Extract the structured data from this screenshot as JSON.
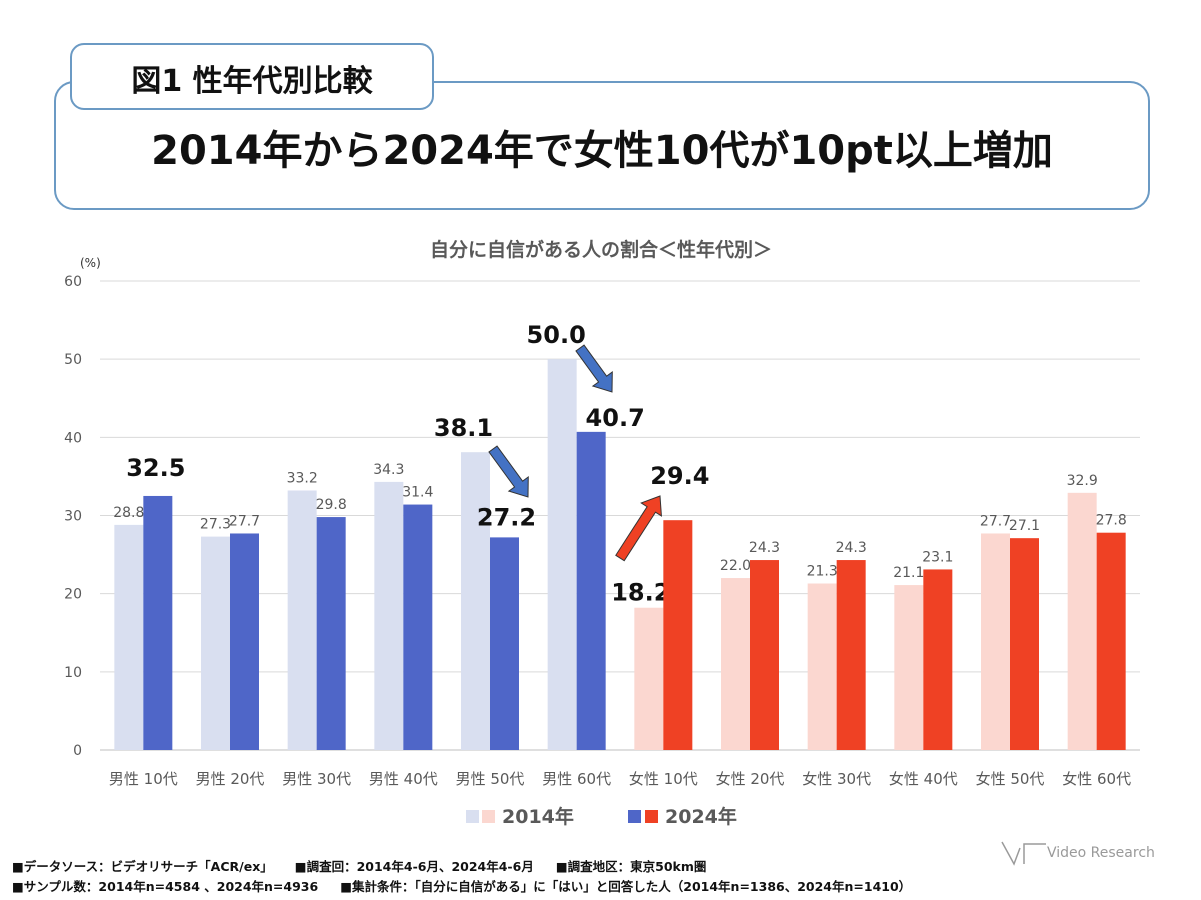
{
  "header": {
    "figure_label": "図1 性年代別比較",
    "headline": "2014年から2024年で女性10代が10pt以上増加"
  },
  "chart_data": {
    "type": "bar",
    "title": "自分に自信がある人の割合＜性年代別＞",
    "ylabel": "(%)",
    "ylim": [
      0,
      60
    ],
    "yticks": [
      0,
      10,
      20,
      30,
      40,
      50,
      60
    ],
    "categories": [
      "男性 10代",
      "男性 20代",
      "男性 30代",
      "男性 40代",
      "男性 50代",
      "男性 60代",
      "女性 10代",
      "女性 20代",
      "女性 30代",
      "女性 40代",
      "女性 50代",
      "女性 60代"
    ],
    "series": [
      {
        "name": "2014年",
        "values": [
          28.8,
          27.3,
          33.2,
          34.3,
          38.1,
          50.0,
          18.2,
          22.0,
          21.3,
          21.1,
          27.7,
          32.9
        ]
      },
      {
        "name": "2024年",
        "values": [
          32.5,
          27.7,
          29.8,
          31.4,
          27.2,
          40.7,
          29.4,
          24.3,
          24.3,
          23.1,
          27.1,
          27.8
        ]
      }
    ],
    "colors": {
      "male_2014": "#d9dff0",
      "male_2024": "#4f66c8",
      "female_2014": "#fbd7d0",
      "female_2024": "#ef4124",
      "grid": "#d9d9d9",
      "label": "#595959",
      "arrow_blue": "#4472c4",
      "arrow_red": "#ef4124"
    },
    "highlight_labels": [
      {
        "category": 0,
        "series": 1
      },
      {
        "category": 4,
        "series": 0
      },
      {
        "category": 4,
        "series": 1
      },
      {
        "category": 5,
        "series": 0
      },
      {
        "category": 5,
        "series": 1
      },
      {
        "category": 6,
        "series": 0
      },
      {
        "category": 6,
        "series": 1
      }
    ],
    "arrows": [
      {
        "from": "男性 50代 2014年",
        "to": "男性 50代 2024年",
        "color": "blue"
      },
      {
        "from": "男性 60代 2014年",
        "to": "男性 60代 2024年",
        "color": "blue"
      },
      {
        "from": "女性 10代 2014年",
        "to": "女性 10代 2024年",
        "color": "red"
      }
    ],
    "legend": [
      "2014年",
      "2024年"
    ],
    "legend_position": "bottom"
  },
  "footer": {
    "line1": [
      "■データソース：ビデオリサーチ「ACR/ex」",
      "■調査回：2014年4-6月、2024年4-6月",
      "■調査地区：東京50km圏"
    ],
    "line2": [
      "■サンプル数：2014年n=4584 、2024年n=4936",
      "■集計条件：「自分に自信がある」に「はい」と回答した人（2014年n=1386、2024年n=1410）"
    ]
  },
  "logo": {
    "text": "Video Research"
  }
}
